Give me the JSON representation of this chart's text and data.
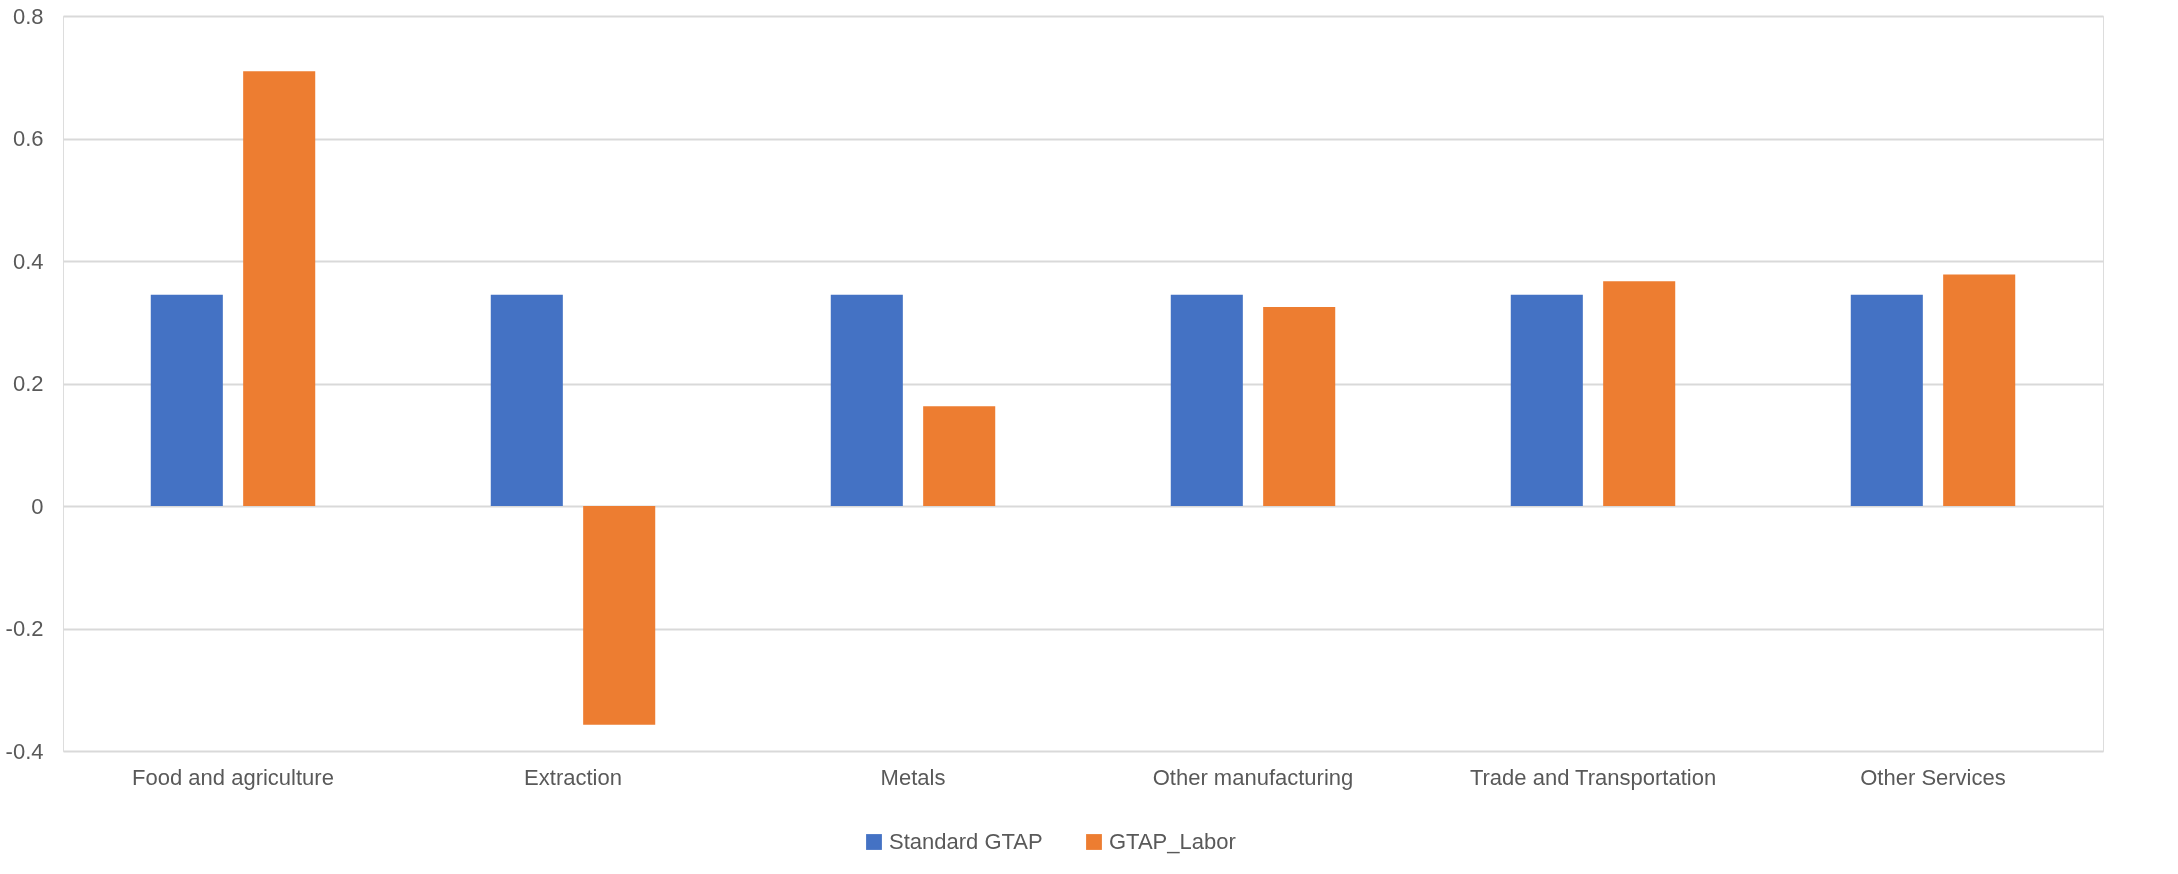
{
  "chart_data": {
    "type": "bar",
    "categories": [
      "Food and agriculture",
      "Extraction",
      "Metals",
      "Other manufacturing",
      "Trade and Transportation",
      "Other Services"
    ],
    "series": [
      {
        "name": "Standard GTAP",
        "color": "#4472c4",
        "values": [
          0.345,
          0.345,
          0.345,
          0.345,
          0.345,
          0.345
        ]
      },
      {
        "name": "GTAP_Labor",
        "color": "#ed7d31",
        "values": [
          0.71,
          -0.357,
          0.163,
          0.325,
          0.367,
          0.378
        ]
      }
    ],
    "ylim": [
      -0.4,
      0.8
    ],
    "yticks": [
      -0.4,
      -0.2,
      0,
      0.2,
      0.4,
      0.6,
      0.8
    ],
    "grid": "y",
    "legend": "bottom"
  }
}
